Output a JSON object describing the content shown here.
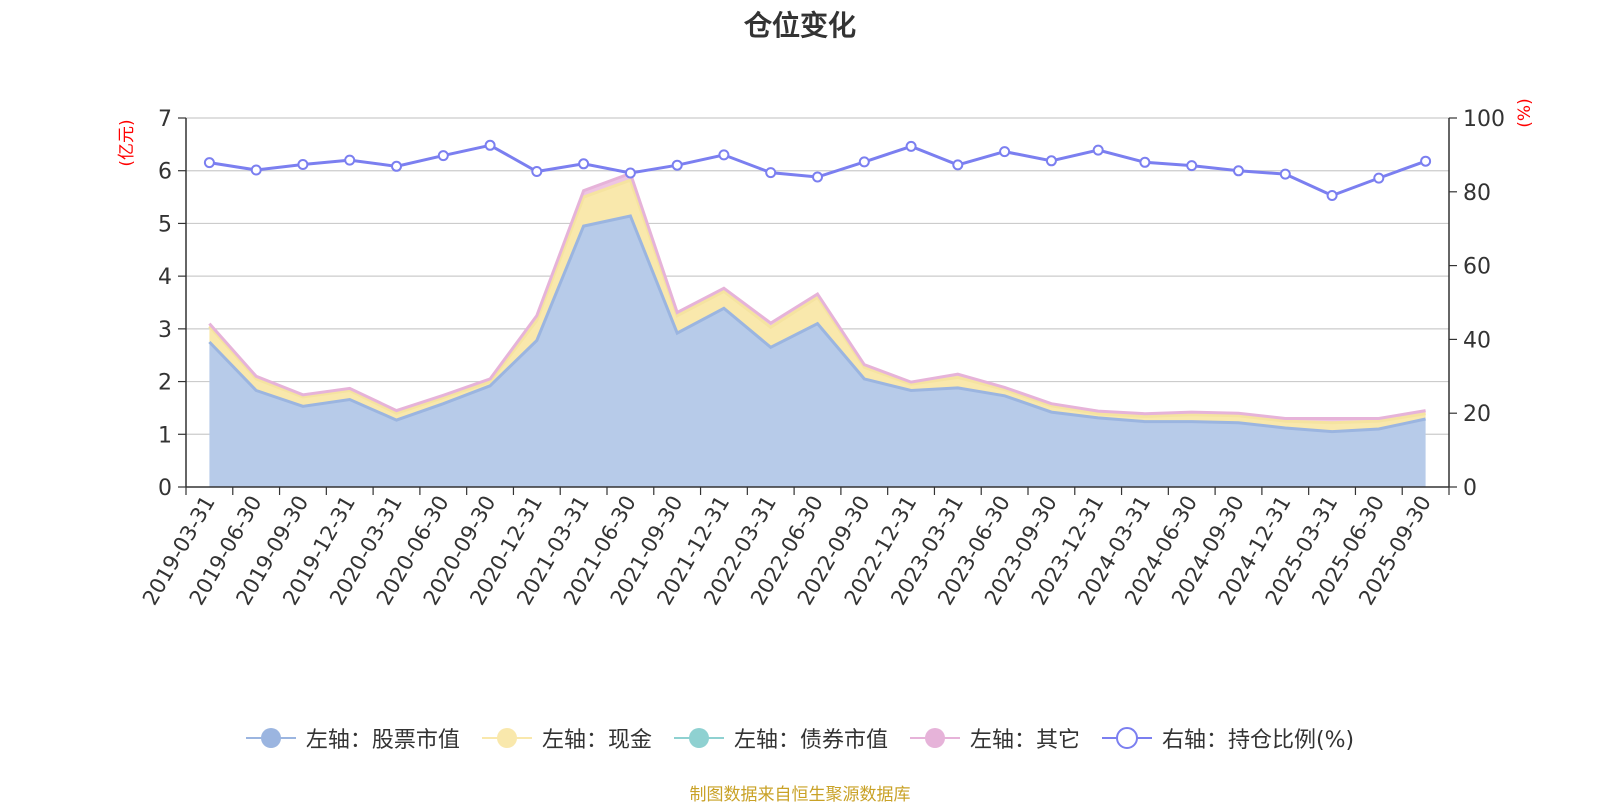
{
  "chart_data": {
    "type": "area",
    "title": "仓位变化",
    "left_axis_label": "(亿元)",
    "right_axis_label": "(%)",
    "left_ylim": [
      0,
      7
    ],
    "left_ticks": [
      0,
      1,
      2,
      3,
      4,
      5,
      6,
      7
    ],
    "right_ylim": [
      0,
      100
    ],
    "right_ticks": [
      0,
      20,
      40,
      60,
      80,
      100
    ],
    "categories": [
      "2019-03-31",
      "2019-06-30",
      "2019-09-30",
      "2019-12-31",
      "2020-03-31",
      "2020-06-30",
      "2020-09-30",
      "2020-12-31",
      "2021-03-31",
      "2021-06-30",
      "2021-09-30",
      "2021-12-31",
      "2022-03-31",
      "2022-06-30",
      "2022-09-30",
      "2022-12-31",
      "2023-03-31",
      "2023-06-30",
      "2023-09-30",
      "2023-12-31",
      "2024-03-31",
      "2024-06-30",
      "2024-09-30",
      "2024-12-31",
      "2025-03-31",
      "2025-06-30",
      "2025-09-30"
    ],
    "series": [
      {
        "name": "左轴：股票市值",
        "axis": "left",
        "type": "area-stacked",
        "color": "#9bb5e0",
        "fill": "#b7cbe9",
        "values": [
          2.75,
          1.83,
          1.53,
          1.66,
          1.27,
          1.58,
          1.92,
          2.78,
          4.95,
          5.14,
          2.92,
          3.39,
          2.65,
          3.1,
          2.05,
          1.83,
          1.88,
          1.73,
          1.42,
          1.31,
          1.24,
          1.24,
          1.22,
          1.12,
          1.05,
          1.1,
          1.29
        ]
      },
      {
        "name": "左轴：现金",
        "axis": "left",
        "type": "area-stacked",
        "color": "#f5e3a0",
        "fill": "#f9e8ac",
        "values": [
          0.3,
          0.22,
          0.18,
          0.17,
          0.13,
          0.12,
          0.08,
          0.38,
          0.55,
          0.68,
          0.33,
          0.32,
          0.38,
          0.5,
          0.22,
          0.12,
          0.2,
          0.12,
          0.12,
          0.08,
          0.1,
          0.13,
          0.13,
          0.13,
          0.17,
          0.15,
          0.1
        ]
      },
      {
        "name": "左轴：债券市值",
        "axis": "left",
        "type": "area-stacked",
        "color": "#8fd1d1",
        "fill": "#a6dcdc",
        "values": [
          0,
          0,
          0,
          0,
          0,
          0,
          0,
          0,
          0,
          0,
          0,
          0,
          0,
          0,
          0,
          0,
          0,
          0,
          0,
          0,
          0,
          0,
          0,
          0,
          0,
          0,
          0
        ]
      },
      {
        "name": "左轴：其它",
        "axis": "left",
        "type": "area-stacked",
        "color": "#e6b3d9",
        "fill": "#eec4e3",
        "values": [
          0.05,
          0.05,
          0.04,
          0.04,
          0.05,
          0.04,
          0.05,
          0.09,
          0.12,
          0.13,
          0.06,
          0.06,
          0.08,
          0.06,
          0.05,
          0.04,
          0.06,
          0.04,
          0.04,
          0.05,
          0.05,
          0.05,
          0.05,
          0.05,
          0.08,
          0.05,
          0.06
        ]
      },
      {
        "name": "右轴：持仓比例(%)",
        "axis": "right",
        "type": "line",
        "color": "#7b7ff0",
        "values": [
          87.9,
          85.9,
          87.4,
          88.6,
          86.9,
          89.8,
          92.6,
          85.5,
          87.6,
          85.1,
          87.2,
          90.0,
          85.2,
          84.0,
          88.1,
          92.3,
          87.3,
          90.9,
          88.4,
          91.3,
          88.0,
          87.1,
          85.7,
          84.8,
          79.0,
          83.7,
          88.3
        ]
      }
    ]
  },
  "legend": [
    {
      "label": "左轴：股票市值",
      "color": "#9bb5e0",
      "kind": "filled"
    },
    {
      "label": "左轴：现金",
      "color": "#f9e8ac",
      "kind": "filled"
    },
    {
      "label": "左轴：债券市值",
      "color": "#8fd1d1",
      "kind": "filled"
    },
    {
      "label": "左轴：其它",
      "color": "#e6b3d9",
      "kind": "filled"
    },
    {
      "label": "右轴：持仓比例(%)",
      "color": "#7b7ff0",
      "kind": "hollow"
    }
  ],
  "source_text": "制图数据来自恒生聚源数据库"
}
